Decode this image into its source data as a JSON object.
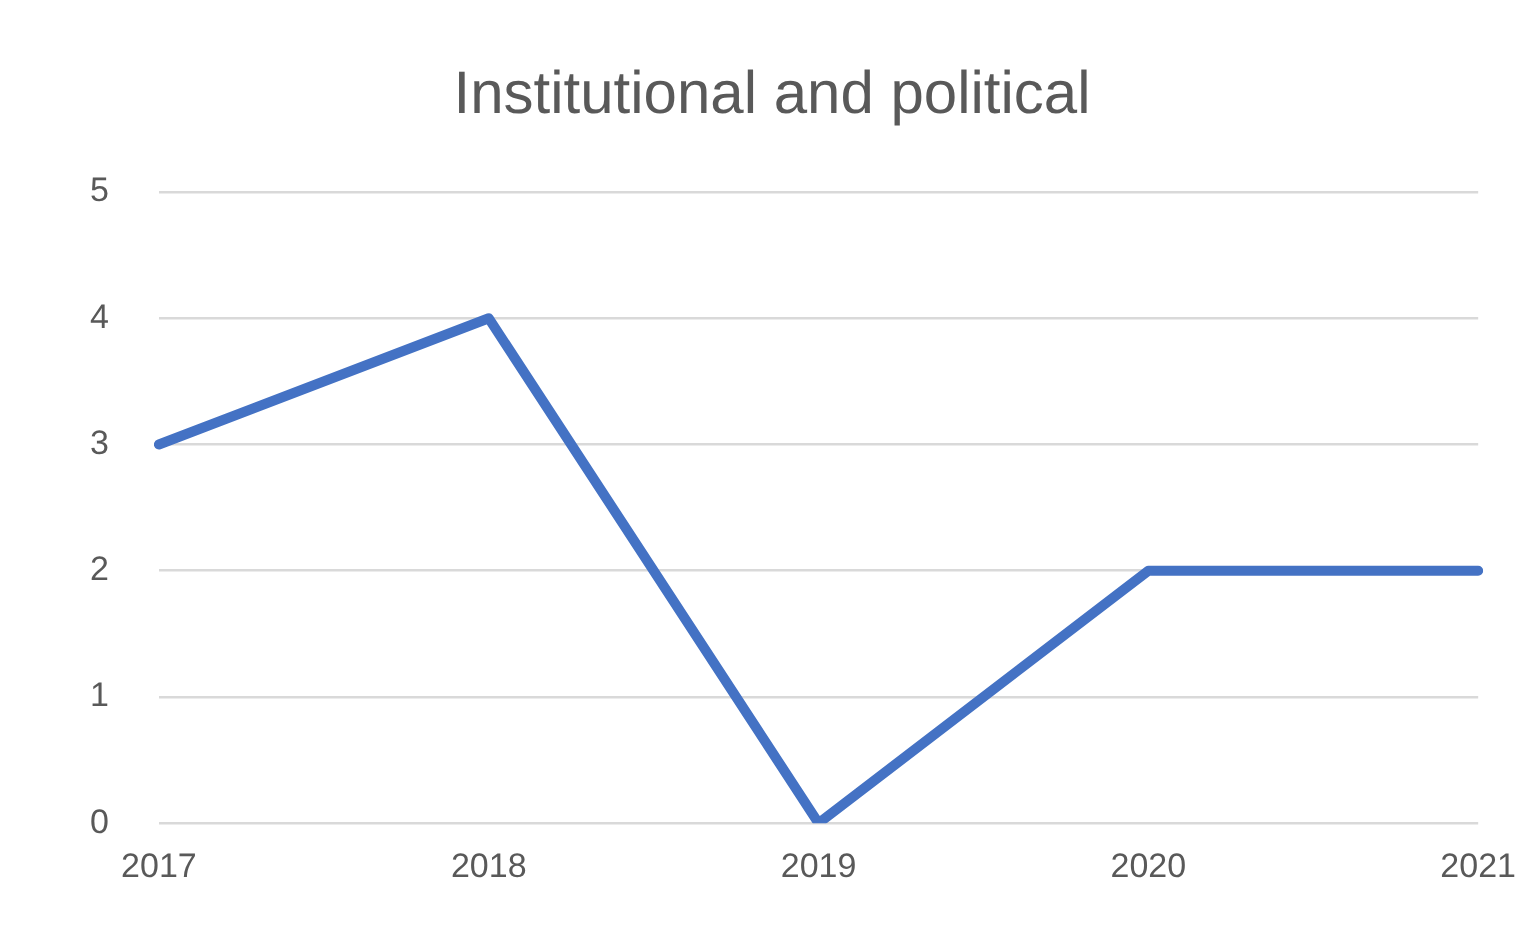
{
  "chart_data": {
    "type": "line",
    "title": "Institutional and political",
    "categories": [
      "2017",
      "2018",
      "2019",
      "2020",
      "2021"
    ],
    "series": [
      {
        "color": "#4472c4",
        "values": [
          3,
          4,
          0,
          2,
          2
        ]
      }
    ],
    "ylim": [
      0,
      5
    ],
    "yticks": [
      0,
      1,
      2,
      3,
      4,
      5
    ],
    "grid": "y",
    "legend": false,
    "marker": "none"
  }
}
